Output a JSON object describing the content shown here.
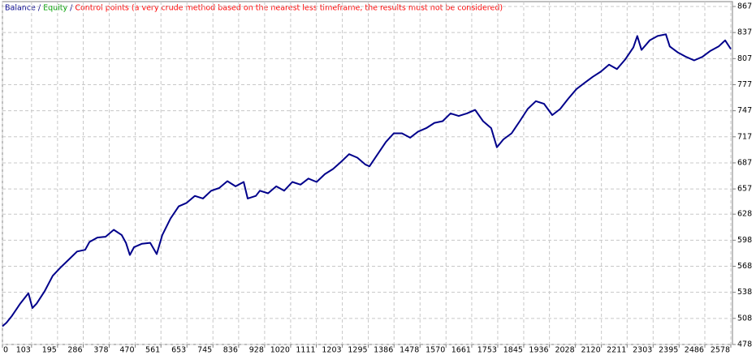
{
  "chart_data": {
    "type": "line",
    "series": [
      {
        "name": "Balance",
        "color": "#00008b",
        "x": [
          0,
          14,
          34,
          63,
          92,
          106,
          121,
          149,
          178,
          207,
          236,
          264,
          293,
          308,
          336,
          365,
          394,
          422,
          437,
          451,
          466,
          494,
          523,
          546,
          566,
          595,
          624,
          652,
          681,
          710,
          739,
          767,
          796,
          825,
          854,
          868,
          897,
          911,
          940,
          969,
          997,
          1026,
          1055,
          1083,
          1112,
          1141,
          1170,
          1198,
          1227,
          1256,
          1285,
          1299,
          1328,
          1357,
          1385,
          1414,
          1443,
          1471,
          1500,
          1529,
          1558,
          1586,
          1615,
          1644,
          1673,
          1701,
          1730,
          1750,
          1773,
          1802,
          1831,
          1859,
          1888,
          1917,
          1946,
          1974,
          2003,
          2032,
          2060,
          2089,
          2118,
          2147,
          2175,
          2204,
          2233,
          2247,
          2262,
          2291,
          2319,
          2348,
          2362,
          2391,
          2420,
          2448,
          2477,
          2506,
          2535,
          2558,
          2578
        ],
        "values": [
          499,
          503,
          511,
          525,
          537,
          520,
          525,
          539,
          557,
          567,
          576,
          585,
          587,
          596,
          601,
          602,
          610,
          604,
          595,
          581,
          590,
          594,
          595,
          582,
          604,
          623,
          637,
          641,
          649,
          646,
          655,
          658,
          666,
          660,
          665,
          646,
          649,
          655,
          652,
          660,
          655,
          665,
          662,
          669,
          665,
          674,
          680,
          688,
          697,
          693,
          685,
          683,
          697,
          711,
          721,
          721,
          716,
          723,
          727,
          733,
          735,
          744,
          741,
          744,
          748,
          735,
          727,
          705,
          714,
          721,
          735,
          749,
          758,
          755,
          742,
          749,
          761,
          772,
          779,
          786,
          792,
          800,
          795,
          806,
          820,
          833,
          817,
          828,
          833,
          835,
          821,
          814,
          809,
          805,
          809,
          816,
          821,
          828,
          818
        ]
      }
    ],
    "separator": "/",
    "equity_label": {
      "text": "Equity",
      "color": "#00a000"
    },
    "control_points_label": {
      "text": "Control points (a very crude method based on the nearest less timeframe, the results must not be considered)",
      "color": "#ff0000"
    },
    "xlim": [
      0,
      2578
    ],
    "xticks": [
      0,
      103,
      195,
      286,
      378,
      470,
      561,
      653,
      745,
      836,
      928,
      1020,
      1111,
      1203,
      1295,
      1386,
      1478,
      1570,
      1661,
      1753,
      1845,
      1936,
      2028,
      2120,
      2211,
      2303,
      2395,
      2486,
      2578
    ],
    "ylim": [
      478,
      867
    ],
    "yticks": [
      478,
      508,
      538,
      568,
      598,
      628,
      657,
      687,
      717,
      747,
      777,
      807,
      837,
      867
    ],
    "grid": true
  }
}
